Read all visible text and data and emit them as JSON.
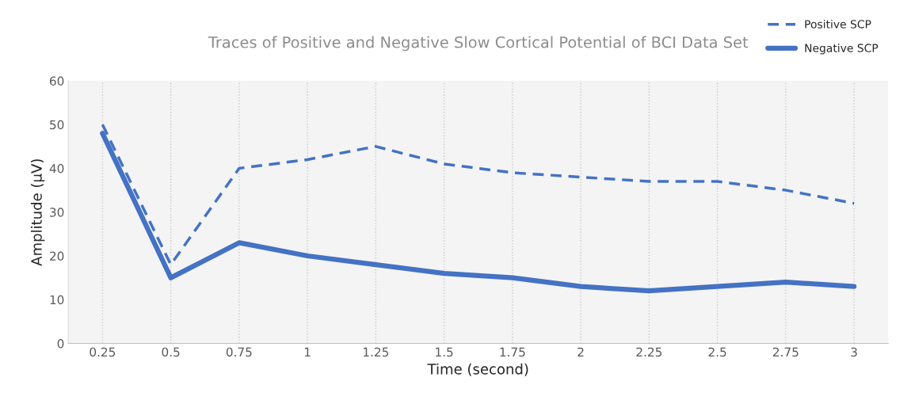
{
  "chart_data": {
    "type": "line",
    "title": "Traces of Positive and Negative Slow Cortical Potential of BCI Data Set",
    "xlabel": "Time (second)",
    "ylabel": "Amplitude (µV)",
    "categories": [
      "0.25",
      "0.5",
      "0.75",
      "1",
      "1.25",
      "1.5",
      "1.75",
      "2",
      "2.25",
      "2.5",
      "2.75",
      "3"
    ],
    "series": [
      {
        "name": "Positive SCP",
        "color": "#4472c4",
        "line_style": "dashed",
        "values": [
          50,
          18,
          40,
          42,
          45,
          41,
          39,
          38,
          37,
          37,
          35,
          32
        ]
      },
      {
        "name": "Negative SCP",
        "color": "#4472c4",
        "line_style": "solid",
        "values": [
          48,
          15,
          23,
          20,
          18,
          16,
          15,
          13,
          12,
          13,
          14,
          13
        ]
      }
    ],
    "ylim": [
      0,
      60
    ],
    "yticks": [
      0,
      10,
      20,
      30,
      40,
      50,
      60
    ],
    "grid": "x",
    "legend": "top right",
    "marker": "none"
  }
}
